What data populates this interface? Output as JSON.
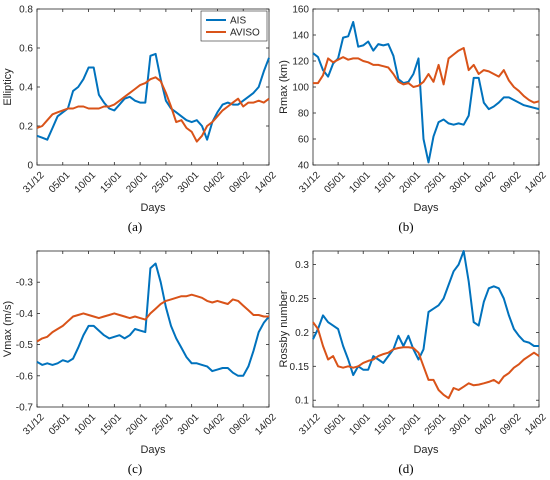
{
  "colors": {
    "ais": "#0072BD",
    "aviso": "#D95319",
    "axis": "#262626"
  },
  "legend": {
    "entries": [
      "AIS",
      "AVISO"
    ],
    "placement": "top-right",
    "panel": 0
  },
  "chart_data": [
    {
      "type": "line",
      "caption": "(a)",
      "xlabel": "Days",
      "ylabel": "Ellipticy",
      "xlim": [
        0,
        45
      ],
      "ylim": [
        0,
        0.8
      ],
      "xtick_values": [
        0,
        5,
        10,
        15,
        20,
        25,
        30,
        35,
        40,
        45
      ],
      "xtick_labels": [
        "31/12",
        "05/01",
        "10/01",
        "15/01",
        "20/01",
        "25/01",
        "30/01",
        "04/02",
        "09/02",
        "14/02"
      ],
      "ytick_values": [
        0,
        0.2,
        0.4,
        0.6,
        0.8
      ],
      "ytick_labels": [
        "0",
        "0.2",
        "0.4",
        "0.6",
        "0.8"
      ],
      "series": [
        {
          "name": "AIS",
          "x": [
            0,
            1,
            2,
            3,
            4,
            5,
            6,
            7,
            8,
            9,
            10,
            11,
            12,
            13,
            14,
            15,
            16,
            17,
            18,
            19,
            20,
            21,
            22,
            23,
            24,
            25,
            26,
            27,
            28,
            29,
            30,
            31,
            32,
            33,
            34,
            35,
            36,
            37,
            38,
            39,
            40,
            41,
            42,
            43,
            44,
            45
          ],
          "y": [
            0.15,
            0.14,
            0.13,
            0.19,
            0.25,
            0.27,
            0.29,
            0.38,
            0.4,
            0.44,
            0.5,
            0.5,
            0.36,
            0.32,
            0.29,
            0.28,
            0.31,
            0.34,
            0.35,
            0.33,
            0.32,
            0.32,
            0.56,
            0.57,
            0.44,
            0.33,
            0.29,
            0.27,
            0.25,
            0.23,
            0.22,
            0.23,
            0.2,
            0.13,
            0.22,
            0.27,
            0.31,
            0.32,
            0.31,
            0.31,
            0.33,
            0.35,
            0.37,
            0.4,
            0.48,
            0.55
          ]
        },
        {
          "name": "AVISO",
          "x": [
            0,
            1,
            2,
            3,
            4,
            5,
            6,
            7,
            8,
            9,
            10,
            11,
            12,
            13,
            14,
            15,
            16,
            17,
            18,
            19,
            20,
            21,
            22,
            23,
            24,
            25,
            26,
            27,
            28,
            29,
            30,
            31,
            32,
            33,
            34,
            35,
            36,
            37,
            38,
            39,
            40,
            41,
            42,
            43,
            44,
            45
          ],
          "y": [
            0.19,
            0.2,
            0.23,
            0.26,
            0.27,
            0.28,
            0.29,
            0.29,
            0.3,
            0.3,
            0.29,
            0.29,
            0.29,
            0.3,
            0.3,
            0.31,
            0.33,
            0.35,
            0.37,
            0.39,
            0.41,
            0.42,
            0.44,
            0.45,
            0.43,
            0.37,
            0.3,
            0.22,
            0.23,
            0.19,
            0.17,
            0.12,
            0.15,
            0.2,
            0.22,
            0.25,
            0.28,
            0.3,
            0.32,
            0.34,
            0.3,
            0.32,
            0.32,
            0.33,
            0.32,
            0.34
          ]
        }
      ]
    },
    {
      "type": "line",
      "caption": "(b)",
      "xlabel": "Days",
      "ylabel": "Rmax (km)",
      "xlim": [
        0,
        45
      ],
      "ylim": [
        40,
        160
      ],
      "xtick_values": [
        0,
        5,
        10,
        15,
        20,
        25,
        30,
        35,
        40,
        45
      ],
      "xtick_labels": [
        "31/12",
        "05/01",
        "10/01",
        "15/01",
        "20/01",
        "25/01",
        "30/01",
        "04/02",
        "09/02",
        "14/02"
      ],
      "ytick_values": [
        40,
        60,
        80,
        100,
        120,
        140,
        160
      ],
      "ytick_labels": [
        "40",
        "60",
        "80",
        "100",
        "120",
        "140",
        "160"
      ],
      "series": [
        {
          "name": "AIS",
          "x": [
            0,
            1,
            2,
            3,
            4,
            5,
            6,
            7,
            8,
            9,
            10,
            11,
            12,
            13,
            14,
            15,
            16,
            17,
            18,
            19,
            20,
            21,
            22,
            23,
            24,
            25,
            26,
            27,
            28,
            29,
            30,
            31,
            32,
            33,
            34,
            35,
            36,
            37,
            38,
            39,
            40,
            41,
            42,
            43,
            44,
            45
          ],
          "y": [
            126,
            123,
            113,
            108,
            118,
            122,
            138,
            139,
            150,
            131,
            132,
            135,
            128,
            133,
            132,
            133,
            124,
            106,
            103,
            104,
            110,
            122,
            60,
            42,
            62,
            73,
            75,
            72,
            71,
            72,
            71,
            78,
            107,
            107,
            88,
            83,
            85,
            88,
            92,
            92,
            90,
            88,
            86,
            85,
            84,
            83
          ]
        },
        {
          "name": "AVISO",
          "x": [
            0,
            1,
            2,
            3,
            4,
            5,
            6,
            7,
            8,
            9,
            10,
            11,
            12,
            13,
            14,
            15,
            16,
            17,
            18,
            19,
            20,
            21,
            22,
            23,
            24,
            25,
            26,
            27,
            28,
            29,
            30,
            31,
            32,
            33,
            34,
            35,
            36,
            37,
            38,
            39,
            40,
            41,
            42,
            43,
            44,
            45
          ],
          "y": [
            103,
            103,
            109,
            122,
            119,
            121,
            123,
            121,
            122,
            122,
            120,
            119,
            117,
            117,
            116,
            115,
            110,
            104,
            102,
            103,
            100,
            101,
            104,
            110,
            104,
            117,
            102,
            122,
            125,
            128,
            130,
            113,
            117,
            110,
            113,
            112,
            110,
            108,
            113,
            105,
            100,
            97,
            93,
            90,
            88,
            89
          ]
        }
      ]
    },
    {
      "type": "line",
      "caption": "(c)",
      "xlabel": "Days",
      "ylabel": "Vmax (m/s)",
      "xlim": [
        0,
        45
      ],
      "ylim": [
        -0.7,
        -0.2
      ],
      "xtick_values": [
        0,
        5,
        10,
        15,
        20,
        25,
        30,
        35,
        40,
        45
      ],
      "xtick_labels": [
        "31/12",
        "05/01",
        "10/01",
        "15/01",
        "20/01",
        "25/01",
        "30/01",
        "04/02",
        "09/02",
        "14/02"
      ],
      "ytick_values": [
        -0.7,
        -0.6,
        -0.5,
        -0.4,
        -0.3,
        -0.2
      ],
      "ytick_labels": [
        "-0.7",
        "-0.6",
        "-0.5",
        "-0.4",
        "-0.3",
        ""
      ],
      "series": [
        {
          "name": "AIS",
          "x": [
            0,
            1,
            2,
            3,
            4,
            5,
            6,
            7,
            8,
            9,
            10,
            11,
            12,
            13,
            14,
            15,
            16,
            17,
            18,
            19,
            20,
            21,
            22,
            23,
            24,
            25,
            26,
            27,
            28,
            29,
            30,
            31,
            32,
            33,
            34,
            35,
            36,
            37,
            38,
            39,
            40,
            41,
            42,
            43,
            44,
            45
          ],
          "y": [
            -0.555,
            -0.565,
            -0.56,
            -0.565,
            -0.56,
            -0.55,
            -0.555,
            -0.545,
            -0.51,
            -0.47,
            -0.44,
            -0.44,
            -0.455,
            -0.47,
            -0.48,
            -0.475,
            -0.47,
            -0.48,
            -0.47,
            -0.45,
            -0.455,
            -0.46,
            -0.255,
            -0.24,
            -0.3,
            -0.38,
            -0.44,
            -0.48,
            -0.51,
            -0.54,
            -0.56,
            -0.56,
            -0.565,
            -0.57,
            -0.585,
            -0.58,
            -0.575,
            -0.575,
            -0.59,
            -0.6,
            -0.6,
            -0.57,
            -0.52,
            -0.46,
            -0.43,
            -0.41
          ]
        },
        {
          "name": "AVISO",
          "x": [
            0,
            1,
            2,
            3,
            4,
            5,
            6,
            7,
            8,
            9,
            10,
            11,
            12,
            13,
            14,
            15,
            16,
            17,
            18,
            19,
            20,
            21,
            22,
            23,
            24,
            25,
            26,
            27,
            28,
            29,
            30,
            31,
            32,
            33,
            34,
            35,
            36,
            37,
            38,
            39,
            40,
            41,
            42,
            43,
            44,
            45
          ],
          "y": [
            -0.49,
            -0.48,
            -0.475,
            -0.46,
            -0.45,
            -0.44,
            -0.425,
            -0.41,
            -0.405,
            -0.4,
            -0.405,
            -0.41,
            -0.415,
            -0.41,
            -0.405,
            -0.4,
            -0.405,
            -0.41,
            -0.415,
            -0.41,
            -0.415,
            -0.42,
            -0.4,
            -0.385,
            -0.37,
            -0.36,
            -0.355,
            -0.35,
            -0.345,
            -0.345,
            -0.34,
            -0.345,
            -0.35,
            -0.36,
            -0.365,
            -0.36,
            -0.365,
            -0.37,
            -0.355,
            -0.36,
            -0.375,
            -0.39,
            -0.405,
            -0.405,
            -0.41,
            -0.41
          ]
        }
      ]
    },
    {
      "type": "line",
      "caption": "(d)",
      "xlabel": "Days",
      "ylabel": "Rossby number",
      "xlim": [
        0,
        45
      ],
      "ylim": [
        0.09,
        0.32
      ],
      "xtick_values": [
        0,
        5,
        10,
        15,
        20,
        25,
        30,
        35,
        40,
        45
      ],
      "xtick_labels": [
        "31/12",
        "05/01",
        "10/01",
        "15/01",
        "20/01",
        "25/01",
        "30/01",
        "04/02",
        "09/02",
        "14/02"
      ],
      "ytick_values": [
        0.1,
        0.15,
        0.2,
        0.25,
        0.3
      ],
      "ytick_labels": [
        "0.1",
        "0.15",
        "0.2",
        "0.25",
        "0.3"
      ],
      "series": [
        {
          "name": "AIS",
          "x": [
            0,
            1,
            2,
            3,
            4,
            5,
            6,
            7,
            8,
            9,
            10,
            11,
            12,
            13,
            14,
            15,
            16,
            17,
            18,
            19,
            20,
            21,
            22,
            23,
            24,
            25,
            26,
            27,
            28,
            29,
            30,
            31,
            32,
            33,
            34,
            35,
            36,
            37,
            38,
            39,
            40,
            41,
            42,
            43,
            44,
            45
          ],
          "y": [
            0.19,
            0.205,
            0.225,
            0.215,
            0.21,
            0.205,
            0.18,
            0.16,
            0.137,
            0.15,
            0.145,
            0.145,
            0.165,
            0.16,
            0.155,
            0.165,
            0.175,
            0.195,
            0.18,
            0.195,
            0.175,
            0.16,
            0.175,
            0.23,
            0.235,
            0.24,
            0.25,
            0.27,
            0.29,
            0.3,
            0.32,
            0.275,
            0.215,
            0.21,
            0.245,
            0.265,
            0.268,
            0.265,
            0.25,
            0.225,
            0.205,
            0.195,
            0.187,
            0.185,
            0.18,
            0.18
          ]
        },
        {
          "name": "AVISO",
          "x": [
            0,
            1,
            2,
            3,
            4,
            5,
            6,
            7,
            8,
            9,
            10,
            11,
            12,
            13,
            14,
            15,
            16,
            17,
            18,
            19,
            20,
            21,
            22,
            23,
            24,
            25,
            26,
            27,
            28,
            29,
            30,
            31,
            32,
            33,
            34,
            35,
            36,
            37,
            38,
            39,
            40,
            41,
            42,
            43,
            44,
            45
          ],
          "y": [
            0.215,
            0.205,
            0.18,
            0.16,
            0.165,
            0.15,
            0.148,
            0.15,
            0.148,
            0.15,
            0.155,
            0.158,
            0.16,
            0.165,
            0.168,
            0.17,
            0.175,
            0.177,
            0.178,
            0.178,
            0.177,
            0.17,
            0.15,
            0.13,
            0.13,
            0.115,
            0.108,
            0.103,
            0.118,
            0.115,
            0.12,
            0.125,
            0.122,
            0.123,
            0.125,
            0.127,
            0.13,
            0.125,
            0.135,
            0.14,
            0.148,
            0.153,
            0.16,
            0.165,
            0.17,
            0.165
          ]
        }
      ]
    }
  ]
}
